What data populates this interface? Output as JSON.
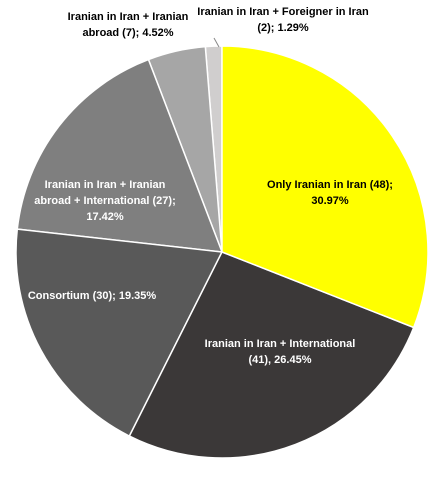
{
  "chart_data": {
    "type": "pie",
    "categories": [
      "Only Iranian in Iran",
      "Iranian in Iran + International",
      "Consortium",
      "Iranian in Iran + Iranian abroad + International",
      "Iranian in Iran + Iranian abroad",
      "Iranian in Iran + Foreigner in Iran"
    ],
    "values": [
      30.97,
      26.45,
      19.35,
      17.42,
      4.52,
      1.29
    ],
    "value_labels": [
      "Only Iranian in Iran (48); 30.97%",
      "Iranian in Iran + International (41), 26.45%",
      "Consortium (30); 19.35%",
      "Iranian in Iran + Iranian abroad + International (27); 17.42%",
      "Iranian in Iran + Iranian abroad (7); 4.52%",
      "Iranian in Iran + Foreigner in Iran (2); 1.29%"
    ],
    "colors": [
      "#ffff00",
      "#3b3838",
      "#595959",
      "#7f7f7f",
      "#a6a6a6",
      "#d0cece"
    ]
  }
}
